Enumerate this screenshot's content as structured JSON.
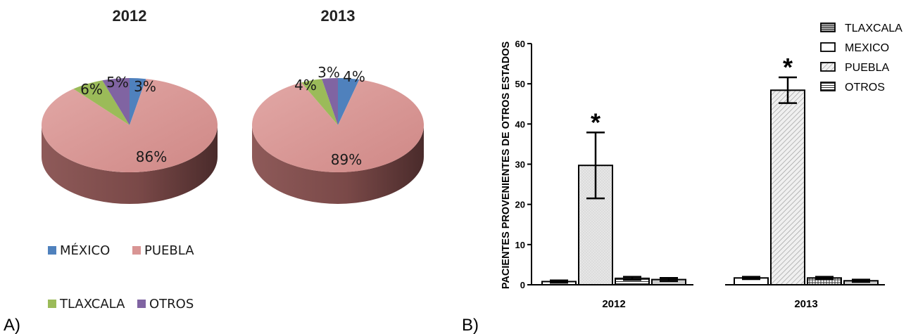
{
  "panel_labels": {
    "a": "A)",
    "b": "B)"
  },
  "chart_data": [
    {
      "type": "pie",
      "title": "2012",
      "slices": [
        {
          "label": "MÉXICO",
          "value": 3,
          "text": "3%"
        },
        {
          "label": "PUEBLA",
          "value": 86,
          "text": "86%"
        },
        {
          "label": "TLAXCALA",
          "value": 6,
          "text": "6%"
        },
        {
          "label": "OTROS",
          "value": 5,
          "text": "5%"
        }
      ]
    },
    {
      "type": "pie",
      "title": "2013",
      "slices": [
        {
          "label": "MÉXICO",
          "value": 4,
          "text": "4%"
        },
        {
          "label": "PUEBLA",
          "value": 89,
          "text": "89%"
        },
        {
          "label": "TLAXCALA",
          "value": 4,
          "text": "4%"
        },
        {
          "label": "OTROS",
          "value": 3,
          "text": "3%"
        }
      ]
    },
    {
      "type": "bar",
      "categories": [
        "2012",
        "2013"
      ],
      "ylabel": "PACIENTES PROVENIENTES DE OTROS ESTADOS",
      "ylim": [
        0,
        60
      ],
      "yticks": [
        "0",
        "10",
        "20",
        "30",
        "40",
        "50",
        "60"
      ],
      "legend_position": "top-right",
      "legend": [
        "TLAXCALA",
        "MEXICO",
        "PUEBLA",
        "OTROS"
      ],
      "series": [
        {
          "name": "MEXICO",
          "values": [
            0.8,
            1.7
          ],
          "errors": [
            0.3,
            0.3
          ]
        },
        {
          "name": "PUEBLA",
          "values": [
            29.7,
            48.4
          ],
          "errors": [
            8.2,
            3.2
          ]
        },
        {
          "name": "TLAXCALA",
          "values": [
            1.6,
            1.7
          ],
          "errors": [
            0.4,
            0.3
          ]
        },
        {
          "name": "OTROS",
          "values": [
            1.3,
            1.0
          ],
          "errors": [
            0.4,
            0.3
          ]
        }
      ],
      "significance": [
        "*",
        "*"
      ]
    }
  ],
  "pie_legend": [
    {
      "label": "MÉXICO",
      "color": "#4f81bd"
    },
    {
      "label": "PUEBLA",
      "color": "#d99594"
    },
    {
      "label": "TLAXCALA",
      "color": "#9bbb59"
    },
    {
      "label": "OTROS",
      "color": "#8064a2"
    }
  ],
  "colors": {
    "MÉXICO": "#4f81bd",
    "PUEBLA": "#d99594",
    "TLAXCALA": "#9bbb59",
    "OTROS": "#8064a2"
  }
}
